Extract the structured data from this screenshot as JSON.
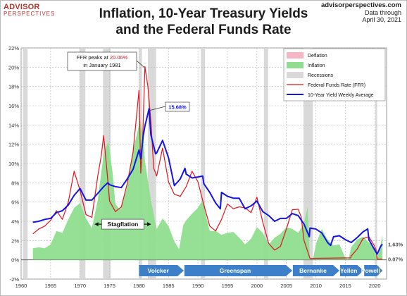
{
  "header": {
    "logo_line1": "ADVISOR",
    "logo_line2": "PERSPECTIVES",
    "title_line1": "Inflation, 10-Year Treasury Yields",
    "title_line2": "and the Federal Funds Rate",
    "source_site": "advisorperspectives.com",
    "source_line2": "Data through",
    "source_line3": "April 30, 2021"
  },
  "colors": {
    "inflation": "#8fde8f",
    "deflation": "#f4b6c4",
    "recession": "#d9d9d9",
    "ffr": "#e0141e",
    "treasury": "#1414e6",
    "arrow": "#3d80c9"
  },
  "chart_data": {
    "type": "line",
    "xlim": [
      1960,
      2022
    ],
    "ylim": [
      -2,
      22
    ],
    "x_ticks": [
      1960,
      1965,
      1970,
      1975,
      1980,
      1985,
      1990,
      1995,
      2000,
      2005,
      2010,
      2015,
      2020
    ],
    "y_ticks": [
      "-2%",
      "0%",
      "2%",
      "4%",
      "6%",
      "8%",
      "10%",
      "12%",
      "14%",
      "16%",
      "18%",
      "20%",
      "22%"
    ],
    "legend": {
      "position": "top-right",
      "entries": [
        {
          "label": "Deflation",
          "kind": "fill",
          "color": "#f4b6c4"
        },
        {
          "label": "Inflation",
          "kind": "fill",
          "color": "#8fde8f"
        },
        {
          "label": "Recessions",
          "kind": "fill",
          "color": "#d9d9d9"
        },
        {
          "label": "Federal Funds Rate (FFR)",
          "kind": "line",
          "color": "#e0141e"
        },
        {
          "label": "10-Year Yield Weekly Average",
          "kind": "line",
          "color": "#1414e6"
        }
      ]
    },
    "recessions": [
      [
        1960.3,
        1961.1
      ],
      [
        1969.9,
        1970.9
      ],
      [
        1973.9,
        1975.2
      ],
      [
        1980.0,
        1980.5
      ],
      [
        1981.5,
        1982.9
      ],
      [
        1990.5,
        1991.2
      ],
      [
        2001.2,
        2001.9
      ],
      [
        2007.9,
        2009.5
      ],
      [
        2020.1,
        2020.4
      ]
    ],
    "series": [
      {
        "name": "Inflation",
        "x": [
          1962,
          1963,
          1964,
          1965,
          1966,
          1967,
          1968,
          1969,
          1970,
          1971,
          1972,
          1973,
          1974,
          1974.8,
          1975.5,
          1976,
          1976.8,
          1977.5,
          1978,
          1979,
          1980.2,
          1980.8,
          1981,
          1982,
          1983,
          1984,
          1985,
          1986,
          1986.8,
          1987.5,
          1988,
          1989,
          1990,
          1990.8,
          1991.5,
          1992,
          1993,
          1994,
          1995,
          1996,
          1997,
          1998,
          1999,
          2000,
          2001,
          2002,
          2003,
          2004,
          2005,
          2006,
          2007,
          2008,
          2008.6,
          2009,
          2009.5,
          2010,
          2011,
          2012,
          2013,
          2014,
          2015,
          2015.5,
          2016,
          2017,
          2018,
          2019,
          2020,
          2020.4,
          2021,
          2021.3
        ],
        "values": [
          1.2,
          1.3,
          1.2,
          1.6,
          3.0,
          2.8,
          4.2,
          5.4,
          5.9,
          4.3,
          3.3,
          6.2,
          11.0,
          12.3,
          9.1,
          5.8,
          5.2,
          6.5,
          7.6,
          11.3,
          14.6,
          12.5,
          10.3,
          6.2,
          3.2,
          4.3,
          3.5,
          1.9,
          1.1,
          3.6,
          4.1,
          4.8,
          5.4,
          6.2,
          4.2,
          3.0,
          3.0,
          2.6,
          2.8,
          2.9,
          2.3,
          1.6,
          2.2,
          3.4,
          2.8,
          1.6,
          2.3,
          2.7,
          3.4,
          3.2,
          2.8,
          3.8,
          5.5,
          0.0,
          0.0,
          1.6,
          3.2,
          2.1,
          1.5,
          1.6,
          0.2,
          0.0,
          1.3,
          2.1,
          2.4,
          1.8,
          1.2,
          0.2,
          1.6,
          2.6
        ]
      },
      {
        "name": "Federal Funds Rate (FFR)",
        "x": [
          1962,
          1963,
          1964,
          1965,
          1966,
          1967,
          1968,
          1969,
          1970,
          1971,
          1972,
          1973,
          1973.6,
          1974,
          1974.6,
          1975,
          1976,
          1977,
          1978,
          1979,
          1980,
          1980.3,
          1980.6,
          1981,
          1981.5,
          1982,
          1982.5,
          1983,
          1984,
          1985,
          1986,
          1987,
          1988,
          1989,
          1990,
          1991,
          1992,
          1993,
          1994,
          1995,
          1996,
          1997,
          1998,
          1999,
          2000,
          2001,
          2002,
          2003,
          2004,
          2005,
          2006,
          2007,
          2007.5,
          2008,
          2009,
          2015.9,
          2016,
          2017,
          2018,
          2019,
          2019.8,
          2020.2,
          2020.4,
          2021.3
        ],
        "values": [
          2.7,
          3.2,
          3.5,
          4.1,
          5.1,
          4.2,
          6.0,
          9.2,
          7.2,
          4.7,
          4.4,
          8.7,
          10.8,
          12.9,
          9.0,
          6.1,
          5.0,
          5.5,
          7.9,
          11.2,
          17.6,
          9.0,
          12.0,
          20.06,
          18.0,
          14.5,
          9.5,
          8.7,
          11.6,
          8.1,
          6.8,
          6.6,
          7.6,
          9.2,
          8.1,
          5.7,
          3.5,
          3.0,
          4.2,
          5.8,
          5.3,
          5.5,
          5.4,
          4.9,
          6.5,
          3.9,
          1.7,
          1.0,
          1.4,
          3.2,
          5.2,
          5.25,
          4.5,
          2.0,
          0.15,
          0.2,
          0.4,
          1.1,
          2.2,
          2.4,
          1.6,
          1.1,
          0.07,
          0.07
        ]
      },
      {
        "name": "10-Year Yield Weekly Average",
        "x": [
          1962,
          1963,
          1964,
          1965,
          1966,
          1967,
          1968,
          1969,
          1970,
          1971,
          1972,
          1973,
          1974,
          1974.7,
          1975,
          1976,
          1977,
          1978,
          1979,
          1980,
          1980.3,
          1980.7,
          1981,
          1981.7,
          1982,
          1982.8,
          1983,
          1984,
          1985,
          1986,
          1987,
          1987.8,
          1988,
          1989,
          1990,
          1990.8,
          1991,
          1992,
          1993,
          1993.8,
          1994,
          1995,
          1996,
          1997,
          1998,
          1999,
          2000,
          2001,
          2002,
          2003,
          2004,
          2005,
          2006,
          2007,
          2008,
          2008.9,
          2009,
          2010,
          2011,
          2012,
          2012.5,
          2013,
          2014,
          2015,
          2016,
          2017,
          2018,
          2018.8,
          2019,
          2020,
          2020.4,
          2021,
          2021.3
        ],
        "values": [
          3.9,
          4.0,
          4.2,
          4.3,
          4.9,
          5.1,
          5.7,
          6.7,
          7.4,
          6.2,
          6.2,
          6.9,
          7.6,
          8.0,
          7.8,
          7.6,
          7.5,
          8.4,
          9.4,
          11.4,
          10.5,
          12.8,
          13.9,
          15.68,
          13.0,
          11.0,
          11.1,
          12.4,
          10.6,
          7.7,
          8.4,
          9.5,
          8.9,
          8.5,
          8.6,
          8.7,
          7.9,
          7.0,
          5.9,
          5.3,
          7.0,
          6.6,
          6.4,
          6.4,
          5.3,
          5.6,
          6.1,
          5.0,
          4.6,
          4.0,
          4.3,
          4.3,
          4.8,
          4.6,
          3.7,
          2.4,
          3.3,
          3.2,
          2.8,
          1.8,
          1.5,
          2.4,
          2.5,
          2.1,
          1.8,
          2.3,
          2.9,
          3.2,
          2.1,
          1.0,
          0.6,
          1.4,
          1.63
        ]
      }
    ],
    "annotations": {
      "ffr_peak": {
        "line1_prefix": "FFR peaks at ",
        "line1_value": "20.06%",
        "line2": "in January 1981",
        "x": 1981.0,
        "y": 20.06
      },
      "yield_peak": {
        "label": "15.68%",
        "x": 1981.7,
        "y": 15.68
      },
      "stagflation": {
        "label": "Stagflation",
        "x_range": [
          1972.5,
          1982.0
        ],
        "y": 3.7
      },
      "end_yield": {
        "label": "1.63%"
      },
      "end_ffr": {
        "label": "0.07%"
      }
    },
    "fed_chairs": [
      {
        "label": "Volcker",
        "x_range": [
          1980.0,
          1987.6
        ]
      },
      {
        "label": "Greenspan",
        "x_range": [
          1987.7,
          2006.0
        ]
      },
      {
        "label": "Bernanke",
        "x_range": [
          2006.1,
          2014.0
        ]
      },
      {
        "label": "Yellen",
        "x_range": [
          2014.1,
          2018.1
        ]
      },
      {
        "label": "Powell",
        "x_range": [
          2018.2,
          2021.3
        ]
      }
    ]
  }
}
